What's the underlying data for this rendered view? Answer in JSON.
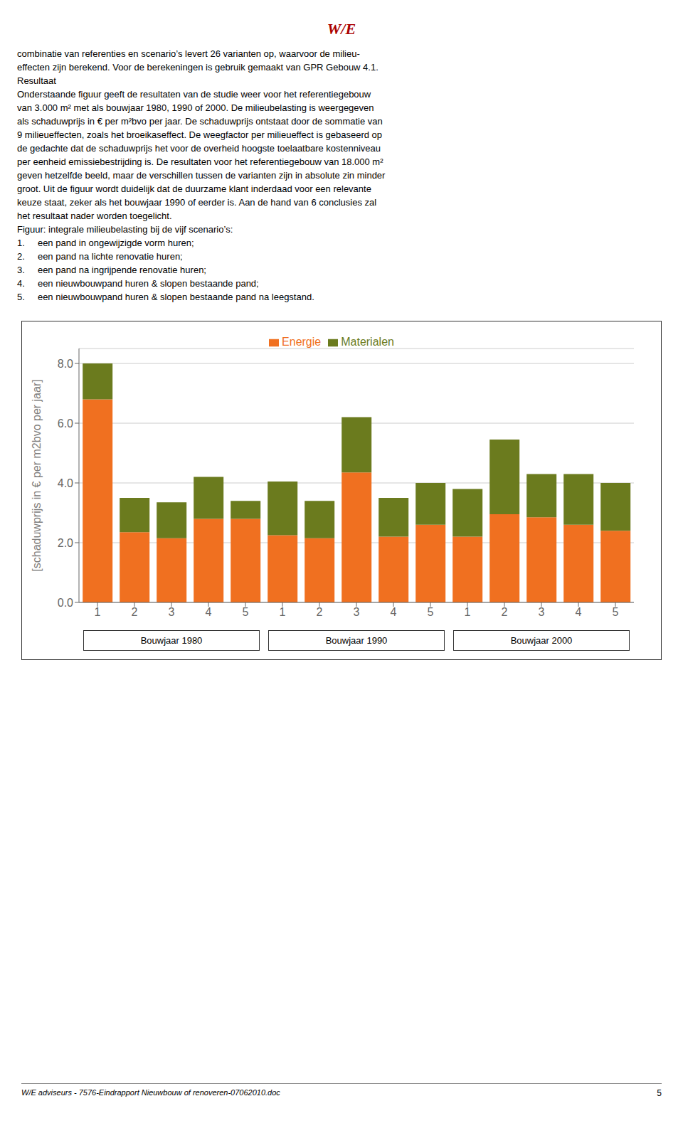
{
  "chart_data": {
    "type": "bar",
    "stacked": true,
    "categories": [
      "1",
      "2",
      "3",
      "4",
      "5",
      "1",
      "2",
      "3",
      "4",
      "5",
      "1",
      "2",
      "3",
      "4",
      "5"
    ],
    "groups": [
      "Bouwjaar 1980",
      "Bouwjaar 1990",
      "Bouwjaar 2000"
    ],
    "series": [
      {
        "name": "Energie",
        "color": "#F07020",
        "values": [
          6.8,
          2.35,
          2.15,
          2.8,
          2.8,
          2.25,
          2.15,
          4.35,
          2.2,
          2.6,
          2.2,
          2.95,
          2.85,
          2.6,
          2.4
        ]
      },
      {
        "name": "Materialen",
        "color": "#6B7B1E",
        "values": [
          1.2,
          1.15,
          1.2,
          1.4,
          0.6,
          1.8,
          1.25,
          1.85,
          1.3,
          1.4,
          1.6,
          2.5,
          1.45,
          1.7,
          1.6
        ]
      }
    ],
    "ylabel": "[schaduwprijs in € per m2bvo per jaar]",
    "ylim": [
      0,
      8.5
    ],
    "yticks": [
      {
        "value": 0.0,
        "label": "0.0"
      },
      {
        "value": 2.0,
        "label": "2.0"
      },
      {
        "value": 4.0,
        "label": "4.0"
      },
      {
        "value": 6.0,
        "label": "6.0"
      },
      {
        "value": 8.0,
        "label": "8.0"
      }
    ],
    "grid": true,
    "legend": "top",
    "annotations": [
      "W/E",
      "combinatie van referenties en scenario’s levert 26 varianten op, waarvoor de milieu-",
      "effecten zijn berekend. Voor de berekeningen is gebruik gemaakt van GPR Gebouw 4.1.",
      "Resultaat",
      "Onderstaande figuur geeft de resultaten van de studie weer voor het referentiegebouw",
      "van 3.000 m² met als bouwjaar 1980, 1990 of 2000. De milieubelasting is weergegeven",
      "als schaduwprijs in € per m²bvo per jaar. De schaduwprijs ontstaat door de sommatie van",
      "9 milieueffecten, zoals het broeikaseffect. De weegfactor per milieueffect is gebaseerd op",
      "de gedachte dat de schaduwprijs het voor de overheid hoogste toelaatbare kostenniveau",
      "per eenheid emissiebestrijding is. De resultaten voor het referentiegebouw van 18.000 m²",
      "geven hetzelfde beeld, maar de verschillen tussen de varianten zijn in absolute zin minder",
      "groot. Uit de figuur wordt duidelijk dat de duurzame klant inderdaad voor een relevante",
      "keuze staat, zeker als het bouwjaar 1990 of eerder is. Aan de hand van 6 conclusies zal",
      "het resultaat nader worden toegelicht.",
      "Figuur: integrale milieubelasting bij de vijf scenario’s:",
      "1.\t\teen pand in ongewijzigde vorm huren;",
      "2.\t\teen pand na lichte renovatie huren;",
      "3.\t\teen pand na ingrijpende renovatie huren;",
      "4.\t\teen nieuwbouwpand huren & slopen bestaande pand;",
      "5.\t\teen nieuwbouwpand huren & slopen bestaande pand na leegstand.",
      "W/E adviseurs - 7576-Eindrapport Nieuwbouw of renoveren-07062010.doc",
      "5"
    ]
  }
}
